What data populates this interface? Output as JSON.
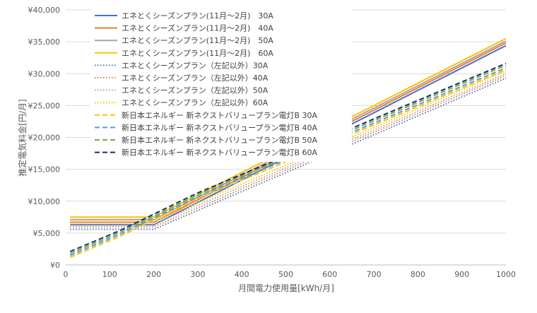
{
  "chart_data": {
    "type": "line",
    "xlabel": "月間電力使用量[kWh/月]",
    "ylabel": "推定電気料金[円/月]",
    "xlim": [
      0,
      1000
    ],
    "ylim": [
      0,
      40000
    ],
    "x_ticks": [
      "0",
      "100",
      "200",
      "300",
      "400",
      "500",
      "600",
      "700",
      "800",
      "900",
      "1000"
    ],
    "y_ticks": [
      "¥0",
      "¥5,000",
      "¥10,000",
      "¥15,000",
      "¥20,000",
      "¥25,000",
      "¥30,000",
      "¥35,000",
      "¥40,000"
    ],
    "grid": "horizontal",
    "legend_position": "top-left",
    "series": [
      {
        "name": "エネとくシーズンプラン(11月～2月)　30A",
        "color": "#4472c4",
        "dash": "solid",
        "x": [
          10,
          200,
          1000
        ],
        "y": [
          6300,
          6300,
          34400
        ]
      },
      {
        "name": "エネとくシーズンプラン(11月～2月)　40A",
        "color": "#ed7d31",
        "dash": "solid",
        "x": [
          10,
          200,
          1000
        ],
        "y": [
          6700,
          6700,
          34800
        ]
      },
      {
        "name": "エネとくシーズンプラン(11月～2月)　50A",
        "color": "#a5a5a5",
        "dash": "solid",
        "x": [
          10,
          200,
          1000
        ],
        "y": [
          7100,
          7100,
          35100
        ]
      },
      {
        "name": "エネとくシーズンプラン(11月～2月)　60A",
        "color": "#ffc000",
        "dash": "solid",
        "x": [
          10,
          200,
          1000
        ],
        "y": [
          7500,
          7500,
          35500
        ]
      },
      {
        "name": "エネとくシーズンプラン（左記以外）30A",
        "color": "#4472c4",
        "dash": "dotted",
        "x": [
          10,
          200,
          1000
        ],
        "y": [
          5600,
          5600,
          29300
        ]
      },
      {
        "name": "エネとくシーズンプラン（左記以外）40A",
        "color": "#ed7d31",
        "dash": "dotted",
        "x": [
          10,
          200,
          1000
        ],
        "y": [
          6000,
          6000,
          29700
        ]
      },
      {
        "name": "エネとくシーズンプラン（左記以外）50A",
        "color": "#a5a5a5",
        "dash": "dotted",
        "x": [
          10,
          200,
          1000
        ],
        "y": [
          6400,
          6400,
          30000
        ]
      },
      {
        "name": "エネとくシーズンプラン（左記以外）60A",
        "color": "#ffc000",
        "dash": "dotted",
        "x": [
          10,
          200,
          1000
        ],
        "y": [
          6800,
          6800,
          30400
        ]
      },
      {
        "name": "新日本エネルギー 新ネクストバリュープラン電灯B 30A",
        "color": "#ffc000",
        "dash": "dashed",
        "x": [
          10,
          120,
          300,
          1000
        ],
        "y": [
          1200,
          4400,
          10400,
          30600
        ]
      },
      {
        "name": "新日本エネルギー 新ネクストバリュープラン電灯B 40A",
        "color": "#5b9bd5",
        "dash": "dashed",
        "x": [
          10,
          120,
          300,
          1000
        ],
        "y": [
          1500,
          4700,
          10700,
          30900
        ]
      },
      {
        "name": "新日本エネルギー 新ネクストバリュープラン電灯B 50A",
        "color": "#70ad47",
        "dash": "dashed",
        "x": [
          10,
          120,
          300,
          1000
        ],
        "y": [
          1800,
          5000,
          11000,
          31300
        ]
      },
      {
        "name": "新日本エネルギー 新ネクストバリュープラン電灯B 60A",
        "color": "#1f2d5c",
        "dash": "dashed",
        "x": [
          10,
          120,
          300,
          1000
        ],
        "y": [
          2100,
          5300,
          11300,
          31600
        ]
      }
    ]
  }
}
